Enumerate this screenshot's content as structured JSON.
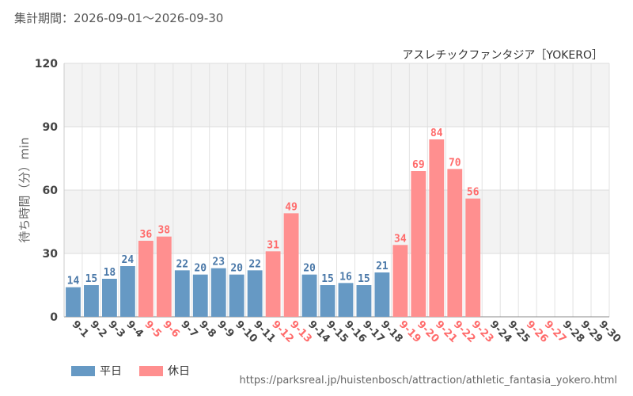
{
  "header": {
    "period": "集計期間：2026-09-01～2026-09-30"
  },
  "colors": {
    "weekday": "#6699c4",
    "holiday": "#ff8f8f",
    "weekday_label": "#4a78a8",
    "holiday_label": "#ff6b6b"
  },
  "legend": {
    "weekday": "平日",
    "holiday": "休日"
  },
  "footer": {
    "source": "https://parksreal.jp/huistenbosch/attraction/athletic_fantasia_yokero.html"
  },
  "chart_data": {
    "type": "bar",
    "title": "アスレチックファンタジア［YOKERO］",
    "xlabel": "",
    "ylabel": "待ち時間（分）min",
    "ylim": [
      0,
      120
    ],
    "yticks": [
      0,
      30,
      60,
      90,
      120
    ],
    "grid": true,
    "legend_position": "bottom-left",
    "categories": [
      "9-1",
      "9-2",
      "9-3",
      "9-4",
      "9-5",
      "9-6",
      "9-7",
      "9-8",
      "9-9",
      "9-10",
      "9-11",
      "9-12",
      "9-13",
      "9-14",
      "9-15",
      "9-16",
      "9-17",
      "9-18",
      "9-19",
      "9-20",
      "9-21",
      "9-22",
      "9-23",
      "9-24",
      "9-25",
      "9-26",
      "9-27",
      "9-28",
      "9-29",
      "9-30"
    ],
    "values": [
      14,
      15,
      18,
      24,
      36,
      38,
      22,
      20,
      23,
      20,
      22,
      31,
      49,
      20,
      15,
      16,
      15,
      21,
      34,
      69,
      84,
      70,
      56,
      null,
      null,
      null,
      null,
      null,
      null,
      null
    ],
    "day_type": [
      "weekday",
      "weekday",
      "weekday",
      "weekday",
      "holiday",
      "holiday",
      "weekday",
      "weekday",
      "weekday",
      "weekday",
      "weekday",
      "holiday",
      "holiday",
      "weekday",
      "weekday",
      "weekday",
      "weekday",
      "weekday",
      "holiday",
      "holiday",
      "holiday",
      "holiday",
      "holiday",
      "weekday",
      "weekday",
      "holiday",
      "holiday",
      "weekday",
      "weekday",
      "weekday"
    ]
  }
}
